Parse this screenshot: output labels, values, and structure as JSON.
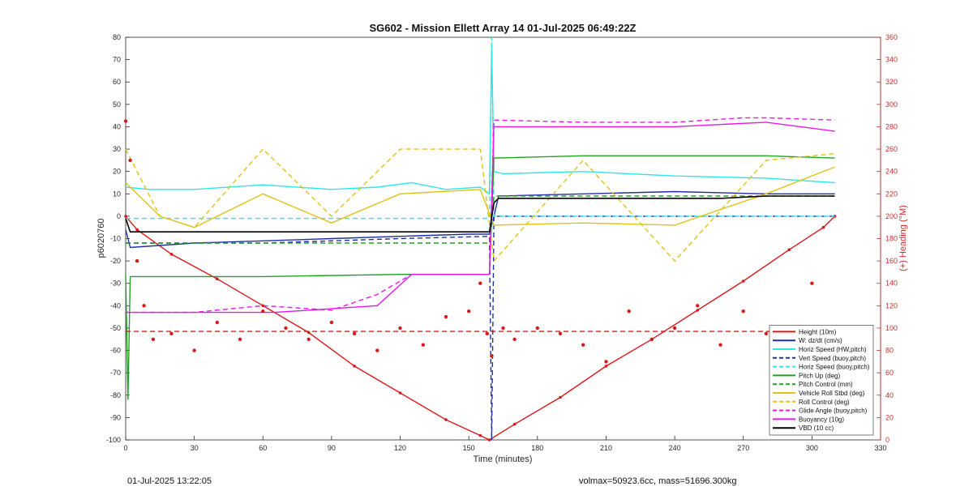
{
  "chart_data": {
    "type": "line",
    "title": "SG602 - Mission Ellett Array 14 01-Jul-2025 06:49:22Z",
    "xlabel": "Time (minutes)",
    "ylabel": "p6020760",
    "ylabel_right": "(+) Heading (°M)",
    "xlim": [
      0,
      330
    ],
    "ylim": [
      -100,
      80
    ],
    "ylim_right": [
      0,
      360
    ],
    "xticks": [
      "0",
      "30",
      "60",
      "90",
      "120",
      "150",
      "180",
      "210",
      "240",
      "270",
      "300",
      "330"
    ],
    "yticks": [
      "80",
      "70",
      "60",
      "50",
      "40",
      "30",
      "20",
      "10",
      "0",
      "-10",
      "-20",
      "-30",
      "-40",
      "-50",
      "-60",
      "-70",
      "-80",
      "-90",
      "-100"
    ],
    "yticks_right": [
      "360",
      "340",
      "320",
      "300",
      "280",
      "260",
      "240",
      "220",
      "200",
      "180",
      "160",
      "140",
      "120",
      "100",
      "80",
      "60",
      "40",
      "20",
      "0"
    ],
    "grid": false,
    "legend_position": "bottom-right",
    "series": [
      {
        "name": "Height (10m)",
        "color": "#d7191c",
        "style": "solid-markers",
        "x": [
          0,
          5,
          20,
          40,
          60,
          80,
          100,
          120,
          140,
          155,
          159,
          170,
          190,
          210,
          230,
          250,
          270,
          290,
          305,
          310
        ],
        "y": [
          0,
          -6,
          -17,
          -28,
          -40,
          -52,
          -67,
          -79,
          -91,
          -98,
          -100,
          -93,
          -81,
          -67,
          -55,
          -42,
          -29,
          -15,
          -5,
          0
        ]
      },
      {
        "name": "W: dz/dt (cm/s)",
        "color": "#1f2fa6",
        "style": "solid",
        "x": [
          0,
          2,
          30,
          60,
          90,
          120,
          150,
          159,
          161,
          163,
          200,
          240,
          280,
          310
        ],
        "y": [
          -6,
          -14,
          -12,
          -11,
          -10,
          -9,
          -8,
          -8,
          0,
          9,
          10,
          11,
          10,
          10
        ]
      },
      {
        "name": "Horiz Speed (HW,pitch)",
        "color": "#2ee6e6",
        "style": "solid",
        "x": [
          0,
          10,
          30,
          60,
          90,
          110,
          125,
          140,
          155,
          159,
          160,
          161,
          165,
          200,
          240,
          280,
          310
        ],
        "y": [
          13,
          12,
          12,
          14,
          12,
          13,
          15,
          12,
          13,
          10,
          75,
          20,
          19,
          20,
          18,
          17,
          15
        ]
      },
      {
        "name": "Vert Speed (buoy,pitch)",
        "color": "#1f2fa6",
        "style": "dashed",
        "x": [
          0,
          30,
          60,
          90,
          120,
          159,
          160,
          161,
          200,
          240,
          280,
          310
        ],
        "y": [
          -12,
          -12,
          -12,
          -11,
          -10,
          -9,
          -100,
          0,
          0,
          0,
          0,
          0
        ]
      },
      {
        "name": "Horiz Speed (buoy,pitch)",
        "color": "#2ee6e6",
        "style": "dashed",
        "x": [
          0,
          159,
          160,
          161,
          310
        ],
        "y": [
          -1,
          -1,
          80,
          0,
          0
        ]
      },
      {
        "name": "Pitch Up (deg)",
        "color": "#22a022",
        "style": "solid",
        "x": [
          0,
          1,
          2,
          10,
          60,
          120,
          159,
          161,
          200,
          240,
          280,
          310
        ],
        "y": [
          -26,
          -82,
          -27,
          -27,
          -27,
          -26,
          -26,
          26,
          27,
          27,
          27,
          26
        ]
      },
      {
        "name": "Pitch Control (mm)",
        "color": "#22a022",
        "style": "dashed",
        "x": [
          0,
          60,
          120,
          159,
          161,
          200,
          240,
          280,
          310
        ],
        "y": [
          -12,
          -12,
          -12,
          -12,
          9,
          9,
          9,
          9,
          9
        ]
      },
      {
        "name": "Vehicle Roll Stbd (deg)",
        "color": "#e0c21a",
        "style": "solid",
        "x": [
          0,
          15,
          30,
          60,
          90,
          120,
          155,
          161,
          200,
          240,
          280,
          310
        ],
        "y": [
          15,
          0,
          -5,
          10,
          -3,
          10,
          12,
          -4,
          -3,
          -4,
          10,
          22
        ]
      },
      {
        "name": "Roll Control (deg)",
        "color": "#e0c21a",
        "style": "dashed",
        "x": [
          0,
          15,
          30,
          60,
          90,
          120,
          155,
          161,
          200,
          240,
          280,
          310
        ],
        "y": [
          30,
          0,
          -5,
          30,
          0,
          30,
          30,
          -20,
          25,
          -20,
          25,
          28
        ]
      },
      {
        "name": "Glide Angle (buoy,pitch)",
        "color": "#e619e6",
        "style": "dashed",
        "x": [
          0,
          30,
          60,
          90,
          110,
          125,
          159,
          161,
          200,
          240,
          270,
          280,
          310
        ],
        "y": [
          -43,
          -43,
          -40,
          -42,
          -35,
          -26,
          -26,
          43,
          42,
          42,
          44,
          44,
          43
        ]
      },
      {
        "name": "Buoyancy (10g)",
        "color": "#e619e6",
        "style": "solid",
        "x": [
          0,
          65,
          80,
          110,
          125,
          159,
          161,
          200,
          240,
          280,
          310
        ],
        "y": [
          -43,
          -43,
          -42,
          -40,
          -26,
          -26,
          40,
          40,
          40,
          42,
          38
        ]
      },
      {
        "name": "VBD (10 cc)",
        "color": "#000000",
        "style": "solid",
        "x": [
          0,
          2,
          60,
          120,
          159,
          161,
          163,
          210,
          260,
          280,
          310
        ],
        "y": [
          -1,
          -7,
          -7,
          -7,
          -7,
          6,
          8,
          8,
          8,
          9,
          9
        ]
      },
      {
        "name": "Heading",
        "axis": "right",
        "color": "#d7191c",
        "style": "markers",
        "x": [
          0,
          2,
          5,
          8,
          12,
          20,
          30,
          40,
          50,
          60,
          70,
          80,
          90,
          100,
          110,
          120,
          130,
          140,
          150,
          155,
          158,
          160,
          165,
          170,
          180,
          190,
          200,
          210,
          220,
          230,
          240,
          250,
          260,
          270,
          280,
          290,
          300,
          305,
          310
        ],
        "y": [
          285,
          250,
          160,
          120,
          90,
          95,
          80,
          105,
          90,
          115,
          100,
          90,
          105,
          95,
          80,
          100,
          85,
          110,
          115,
          140,
          95,
          75,
          100,
          90,
          100,
          95,
          85,
          70,
          115,
          90,
          100,
          120,
          85,
          115,
          95,
          85,
          140,
          90,
          95
        ]
      },
      {
        "name": "Heading target",
        "axis": "right",
        "color": "#d7191c",
        "style": "dashed",
        "x": [
          0,
          310
        ],
        "y": [
          97,
          97
        ]
      }
    ]
  },
  "footer": {
    "left_text": "01-Jul-2025 13:22:05",
    "right_text": "volmax=50923.6cc, mass=51696.300kg"
  }
}
